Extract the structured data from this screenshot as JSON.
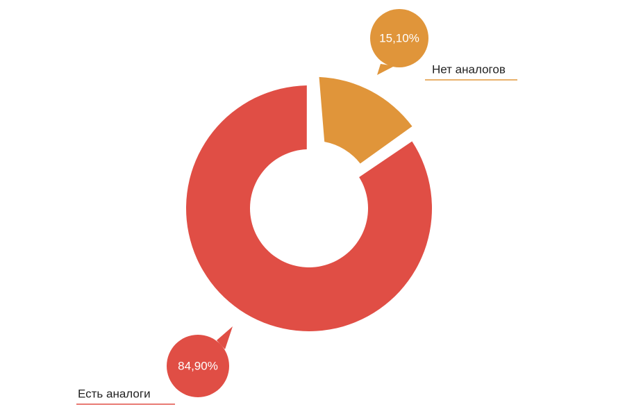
{
  "chart_data": {
    "type": "pie",
    "donut": true,
    "categories": [
      "Нет аналогов",
      "Есть аналоги"
    ],
    "values": [
      15.1,
      84.9
    ],
    "value_labels": [
      "15,10%",
      "84,90%"
    ],
    "colors": [
      "#e0953a",
      "#e04e45"
    ]
  }
}
